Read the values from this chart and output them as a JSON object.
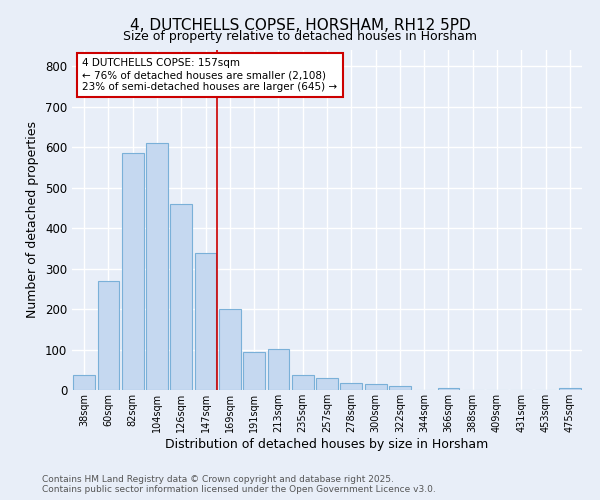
{
  "title1": "4, DUTCHELLS COPSE, HORSHAM, RH12 5PD",
  "title2": "Size of property relative to detached houses in Horsham",
  "xlabel": "Distribution of detached houses by size in Horsham",
  "ylabel": "Number of detached properties",
  "categories": [
    "38sqm",
    "60sqm",
    "82sqm",
    "104sqm",
    "126sqm",
    "147sqm",
    "169sqm",
    "191sqm",
    "213sqm",
    "235sqm",
    "257sqm",
    "278sqm",
    "300sqm",
    "322sqm",
    "344sqm",
    "366sqm",
    "388sqm",
    "409sqm",
    "431sqm",
    "453sqm",
    "475sqm"
  ],
  "values": [
    38,
    270,
    585,
    610,
    460,
    338,
    200,
    93,
    101,
    38,
    30,
    17,
    14,
    10,
    0,
    5,
    0,
    0,
    0,
    0,
    5
  ],
  "bar_color": "#c5d8f0",
  "bar_edge_color": "#7ab0d8",
  "background_color": "#e8eef8",
  "grid_color": "#ffffff",
  "annotation_text_line1": "4 DUTCHELLS COPSE: 157sqm",
  "annotation_text_line2": "← 76% of detached houses are smaller (2,108)",
  "annotation_text_line3": "23% of semi-detached houses are larger (645) →",
  "annotation_box_color": "#ffffff",
  "annotation_box_edge": "#cc0000",
  "red_line_color": "#cc0000",
  "red_line_x": 5.45,
  "footer1": "Contains HM Land Registry data © Crown copyright and database right 2025.",
  "footer2": "Contains public sector information licensed under the Open Government Licence v3.0.",
  "ylim": [
    0,
    840
  ],
  "yticks": [
    0,
    100,
    200,
    300,
    400,
    500,
    600,
    700,
    800
  ]
}
